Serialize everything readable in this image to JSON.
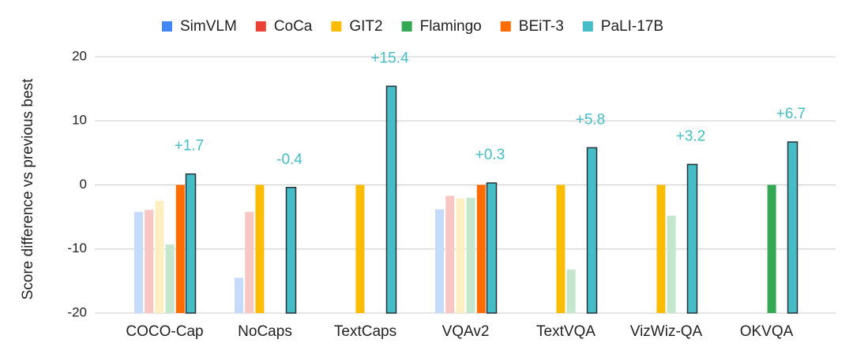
{
  "chart_data": {
    "type": "bar",
    "y_label": "Score difference vs previous best",
    "categories": [
      "COCO-Cap",
      "NoCaps",
      "TextCaps",
      "VQAv2",
      "TextVQA",
      "VizWiz-QA",
      "OKVQA"
    ],
    "series": [
      {
        "name": "SimVLM",
        "color": "#4285f4",
        "values": [
          -4.2,
          -14.5,
          null,
          -3.8,
          null,
          null,
          null
        ],
        "colors": [
          "#c6dafc",
          "#c6dafc",
          null,
          "#c6dafc",
          null,
          null,
          null
        ]
      },
      {
        "name": "CoCa",
        "color": "#ea4335",
        "values": [
          -3.9,
          -4.2,
          null,
          -1.7,
          null,
          null,
          null
        ],
        "colors": [
          "#f8c7c3",
          "#f8c7c3",
          null,
          "#f8c7c3",
          null,
          null,
          null
        ]
      },
      {
        "name": "GIT2",
        "color": "#fbbc04",
        "values": [
          -2.5,
          0,
          0,
          -2.1,
          0,
          0,
          null
        ],
        "colors": [
          "#feefc3",
          "#fbbc04",
          "#fbbc04",
          "#feefc3",
          "#fbbc04",
          "#fbbc04",
          null
        ]
      },
      {
        "name": "Flamingo",
        "color": "#34a853",
        "values": [
          -9.3,
          null,
          null,
          -2.0,
          -13.2,
          -4.8,
          0
        ],
        "colors": [
          "#c4e6cd",
          null,
          null,
          "#c4e6cd",
          "#c4e6cd",
          "#c4e6cd",
          "#34a853"
        ]
      },
      {
        "name": "BEiT-3",
        "color": "#ff6d01",
        "values": [
          0,
          null,
          null,
          0,
          null,
          null,
          null
        ],
        "colors": [
          "#ff6d01",
          null,
          null,
          "#ff6d01",
          null,
          null,
          null
        ]
      },
      {
        "name": "PaLI-17B",
        "color": "#46bdc6",
        "border": "#263238",
        "values": [
          1.7,
          -0.4,
          15.4,
          0.3,
          5.8,
          3.2,
          6.7
        ],
        "value_labels": [
          "+1.7",
          "-0.4",
          "+15.4",
          "+0.3",
          "+5.8",
          "+3.2",
          "+6.7"
        ]
      }
    ],
    "ylim": [
      -20,
      20
    ],
    "yticks": [
      -20,
      -10,
      0,
      10,
      20
    ],
    "grid": true,
    "legend": "top"
  }
}
